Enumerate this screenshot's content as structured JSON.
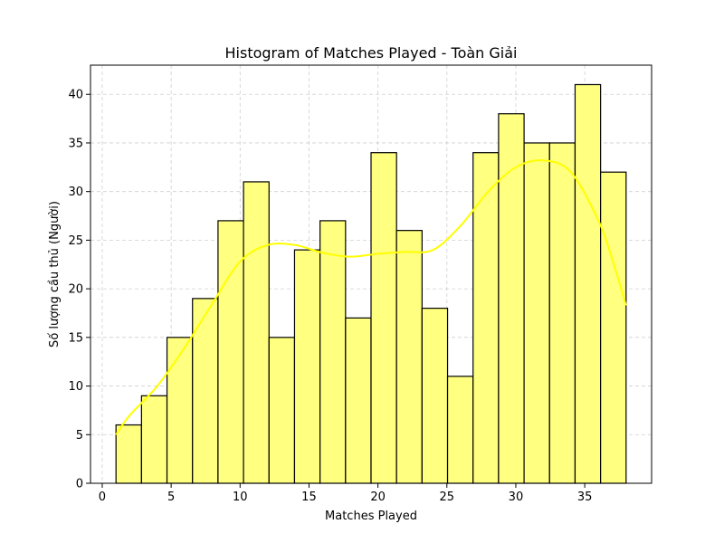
{
  "chart_data": {
    "type": "bar",
    "title": "Histogram of Matches Played - Toàn Giải",
    "xlabel": "Matches Played",
    "ylabel": "Số lượng cầu thủ (Người)",
    "bin_edges": [
      1.0,
      2.85,
      4.7,
      6.55,
      8.4,
      10.25,
      12.1,
      13.95,
      15.8,
      17.65,
      19.5,
      21.35,
      23.2,
      25.05,
      26.9,
      28.75,
      30.6,
      32.45,
      34.3,
      36.15,
      38.0
    ],
    "values": [
      6,
      9,
      15,
      19,
      27,
      31,
      15,
      24,
      27,
      17,
      34,
      26,
      18,
      11,
      34,
      38,
      35,
      35,
      41,
      32
    ],
    "kde": {
      "x": [
        1,
        2,
        4,
        6,
        8,
        10,
        12,
        14,
        16,
        18,
        20,
        22,
        24,
        26,
        28,
        30,
        32,
        34,
        36,
        37,
        38
      ],
      "y": [
        5,
        7,
        10,
        14,
        18.5,
        22.8,
        24.5,
        24.5,
        23.7,
        23.3,
        23.6,
        23.8,
        24,
        26.5,
        30,
        32.5,
        33.2,
        32,
        27,
        23,
        18.3
      ]
    },
    "xlim": [
      -0.85,
      39.85
    ],
    "ylim": [
      0,
      43
    ],
    "xticks": [
      0,
      5,
      10,
      15,
      20,
      25,
      30,
      35
    ],
    "yticks": [
      0,
      5,
      10,
      15,
      20,
      25,
      30,
      35,
      40
    ],
    "grid": true,
    "bar_color": "#ffff80",
    "bar_edge_color": "#000000",
    "kde_color": "#ffff00"
  }
}
